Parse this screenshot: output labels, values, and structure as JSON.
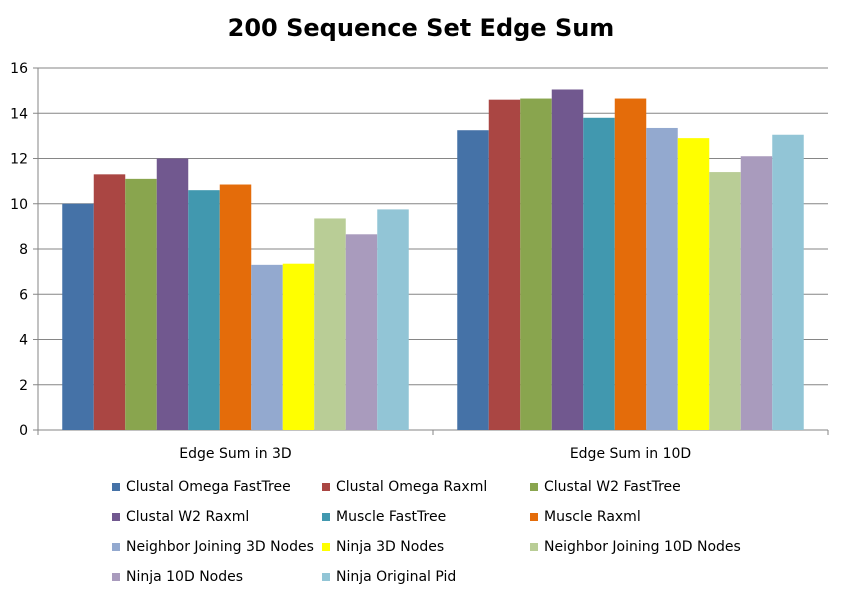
{
  "chart_data": {
    "type": "bar",
    "title": "200 Sequence Set Edge Sum",
    "xlabel": "",
    "ylabel": "",
    "categories": [
      "Edge Sum in 3D",
      "Edge Sum in 10D"
    ],
    "ylim": [
      0,
      16
    ],
    "yticks": [
      0,
      2,
      4,
      6,
      8,
      10,
      12,
      14,
      16
    ],
    "grid": true,
    "legend_position": "bottom",
    "series": [
      {
        "name": "Clustal Omega FastTree",
        "color": "#4572A7",
        "values": [
          10.0,
          13.25
        ]
      },
      {
        "name": "Clustal Omega Raxml",
        "color": "#AA4643",
        "values": [
          11.3,
          14.6
        ]
      },
      {
        "name": "Clustal W2 FastTree",
        "color": "#89A54E",
        "values": [
          11.1,
          14.65
        ]
      },
      {
        "name": "Clustal W2 Raxml",
        "color": "#71588F",
        "values": [
          12.0,
          15.05
        ]
      },
      {
        "name": "Muscle FastTree",
        "color": "#4198AF",
        "values": [
          10.6,
          13.8
        ]
      },
      {
        "name": "Muscle Raxml",
        "color": "#E46C0A",
        "values": [
          10.85,
          14.65
        ]
      },
      {
        "name": "Neighbor Joining 3D Nodes",
        "color": "#93A9CF",
        "values": [
          7.3,
          13.35
        ]
      },
      {
        "name": "Ninja 3D Nodes",
        "color": "#FFFF00",
        "values": [
          7.35,
          12.9
        ]
      },
      {
        "name": "Neighbor Joining 10D Nodes",
        "color": "#B9CD96",
        "values": [
          9.35,
          11.4
        ]
      },
      {
        "name": "Ninja 10D Nodes",
        "color": "#A99BBD",
        "values": [
          8.65,
          12.1
        ]
      },
      {
        "name": "Ninja Original Pid",
        "color": "#92C5D6",
        "values": [
          9.75,
          13.05
        ]
      }
    ]
  }
}
